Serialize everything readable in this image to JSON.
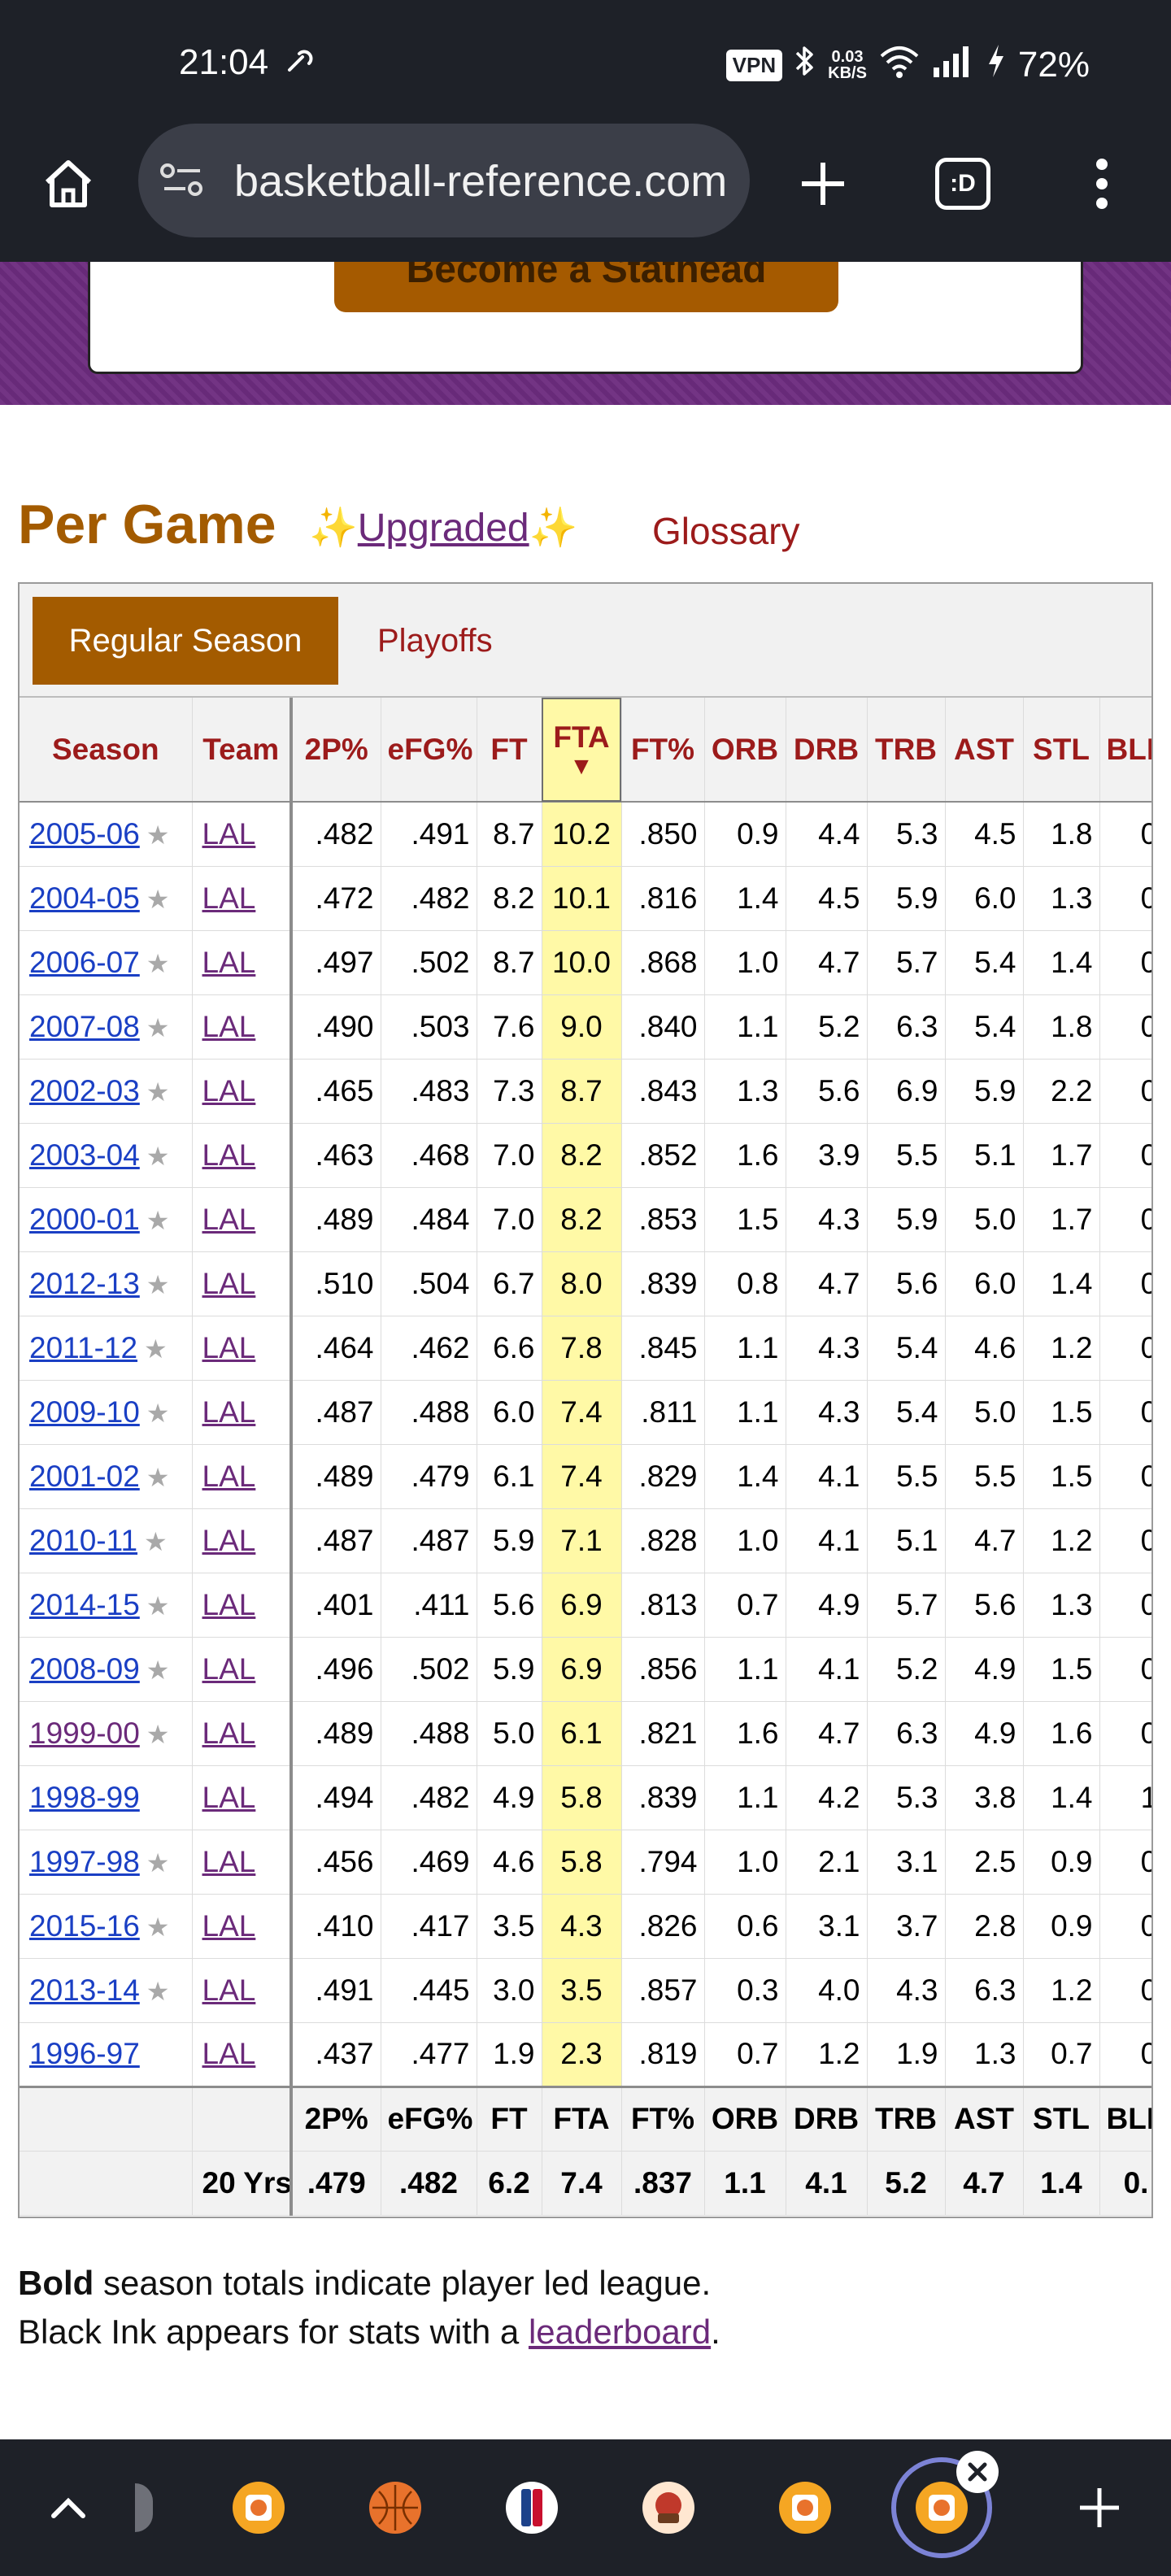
{
  "status_bar": {
    "time": "21:04",
    "nfc_icon": "nfc-icon",
    "vpn_label": "VPN",
    "net_speed_value": "0.03",
    "net_speed_unit": "KB/S",
    "battery": "72%"
  },
  "browser": {
    "url": "basketball-reference.com",
    "tab_count_label": ":D"
  },
  "banner": {
    "button_label": "Become a Stathead"
  },
  "section": {
    "title": "Per Game",
    "sparkle_left": "✨",
    "upgraded_label": "Upgraded",
    "sparkle_right": "✨",
    "glossary_label": "Glossary"
  },
  "filter_tabs": {
    "regular": "Regular Season",
    "playoffs": "Playoffs"
  },
  "columns": {
    "season": "Season",
    "team": "Team",
    "fg2_pct": "2P%",
    "efg_pct": "eFG%",
    "ft": "FT",
    "fta": "FTA",
    "fta_sort": "▼",
    "ft_pct": "FT%",
    "orb": "ORB",
    "drb": "DRB",
    "trb": "TRB",
    "ast": "AST",
    "stl": "STL",
    "blk": "BLK"
  },
  "rows": [
    {
      "season": "2005-06",
      "star": true,
      "team": "LAL",
      "fg2_pct": ".482",
      "efg_pct": ".491",
      "ft": "8.7",
      "fta": "10.2",
      "ft_pct": ".850",
      "orb": "0.9",
      "drb": "4.4",
      "trb": "5.3",
      "ast": "4.5",
      "stl": "1.8",
      "blk": "0."
    },
    {
      "season": "2004-05",
      "star": true,
      "team": "LAL",
      "fg2_pct": ".472",
      "efg_pct": ".482",
      "ft": "8.2",
      "fta": "10.1",
      "ft_pct": ".816",
      "orb": "1.4",
      "drb": "4.5",
      "trb": "5.9",
      "ast": "6.0",
      "stl": "1.3",
      "blk": "0."
    },
    {
      "season": "2006-07",
      "star": true,
      "team": "LAL",
      "fg2_pct": ".497",
      "efg_pct": ".502",
      "ft": "8.7",
      "fta": "10.0",
      "ft_pct": ".868",
      "orb": "1.0",
      "drb": "4.7",
      "trb": "5.7",
      "ast": "5.4",
      "stl": "1.4",
      "blk": "0."
    },
    {
      "season": "2007-08",
      "star": true,
      "team": "LAL",
      "fg2_pct": ".490",
      "efg_pct": ".503",
      "ft": "7.6",
      "fta": "9.0",
      "ft_pct": ".840",
      "orb": "1.1",
      "drb": "5.2",
      "trb": "6.3",
      "ast": "5.4",
      "stl": "1.8",
      "blk": "0."
    },
    {
      "season": "2002-03",
      "star": true,
      "team": "LAL",
      "fg2_pct": ".465",
      "efg_pct": ".483",
      "ft": "7.3",
      "fta": "8.7",
      "ft_pct": ".843",
      "orb": "1.3",
      "drb": "5.6",
      "trb": "6.9",
      "ast": "5.9",
      "stl": "2.2",
      "blk": "0."
    },
    {
      "season": "2003-04",
      "star": true,
      "team": "LAL",
      "fg2_pct": ".463",
      "efg_pct": ".468",
      "ft": "7.0",
      "fta": "8.2",
      "ft_pct": ".852",
      "orb": "1.6",
      "drb": "3.9",
      "trb": "5.5",
      "ast": "5.1",
      "stl": "1.7",
      "blk": "0."
    },
    {
      "season": "2000-01",
      "star": true,
      "team": "LAL",
      "fg2_pct": ".489",
      "efg_pct": ".484",
      "ft": "7.0",
      "fta": "8.2",
      "ft_pct": ".853",
      "orb": "1.5",
      "drb": "4.3",
      "trb": "5.9",
      "ast": "5.0",
      "stl": "1.7",
      "blk": "0."
    },
    {
      "season": "2012-13",
      "star": true,
      "team": "LAL",
      "fg2_pct": ".510",
      "efg_pct": ".504",
      "ft": "6.7",
      "fta": "8.0",
      "ft_pct": ".839",
      "orb": "0.8",
      "drb": "4.7",
      "trb": "5.6",
      "ast": "6.0",
      "stl": "1.4",
      "blk": "0."
    },
    {
      "season": "2011-12",
      "star": true,
      "team": "LAL",
      "fg2_pct": ".464",
      "efg_pct": ".462",
      "ft": "6.6",
      "fta": "7.8",
      "ft_pct": ".845",
      "orb": "1.1",
      "drb": "4.3",
      "trb": "5.4",
      "ast": "4.6",
      "stl": "1.2",
      "blk": "0."
    },
    {
      "season": "2009-10",
      "star": true,
      "team": "LAL",
      "fg2_pct": ".487",
      "efg_pct": ".488",
      "ft": "6.0",
      "fta": "7.4",
      "ft_pct": ".811",
      "orb": "1.1",
      "drb": "4.3",
      "trb": "5.4",
      "ast": "5.0",
      "stl": "1.5",
      "blk": "0."
    },
    {
      "season": "2001-02",
      "star": true,
      "team": "LAL",
      "fg2_pct": ".489",
      "efg_pct": ".479",
      "ft": "6.1",
      "fta": "7.4",
      "ft_pct": ".829",
      "orb": "1.4",
      "drb": "4.1",
      "trb": "5.5",
      "ast": "5.5",
      "stl": "1.5",
      "blk": "0."
    },
    {
      "season": "2010-11",
      "star": true,
      "team": "LAL",
      "fg2_pct": ".487",
      "efg_pct": ".487",
      "ft": "5.9",
      "fta": "7.1",
      "ft_pct": ".828",
      "orb": "1.0",
      "drb": "4.1",
      "trb": "5.1",
      "ast": "4.7",
      "stl": "1.2",
      "blk": "0."
    },
    {
      "season": "2014-15",
      "star": true,
      "team": "LAL",
      "fg2_pct": ".401",
      "efg_pct": ".411",
      "ft": "5.6",
      "fta": "6.9",
      "ft_pct": ".813",
      "orb": "0.7",
      "drb": "4.9",
      "trb": "5.7",
      "ast": "5.6",
      "stl": "1.3",
      "blk": "0."
    },
    {
      "season": "2008-09",
      "star": true,
      "team": "LAL",
      "fg2_pct": ".496",
      "efg_pct": ".502",
      "ft": "5.9",
      "fta": "6.9",
      "ft_pct": ".856",
      "orb": "1.1",
      "drb": "4.1",
      "trb": "5.2",
      "ast": "4.9",
      "stl": "1.5",
      "blk": "0."
    },
    {
      "season": "1999-00",
      "star": true,
      "visited": true,
      "team": "LAL",
      "fg2_pct": ".489",
      "efg_pct": ".488",
      "ft": "5.0",
      "fta": "6.1",
      "ft_pct": ".821",
      "orb": "1.6",
      "drb": "4.7",
      "trb": "6.3",
      "ast": "4.9",
      "stl": "1.6",
      "blk": "0."
    },
    {
      "season": "1998-99",
      "star": false,
      "team": "LAL",
      "fg2_pct": ".494",
      "efg_pct": ".482",
      "ft": "4.9",
      "fta": "5.8",
      "ft_pct": ".839",
      "orb": "1.1",
      "drb": "4.2",
      "trb": "5.3",
      "ast": "3.8",
      "stl": "1.4",
      "blk": "1."
    },
    {
      "season": "1997-98",
      "star": true,
      "team": "LAL",
      "fg2_pct": ".456",
      "efg_pct": ".469",
      "ft": "4.6",
      "fta": "5.8",
      "ft_pct": ".794",
      "orb": "1.0",
      "drb": "2.1",
      "trb": "3.1",
      "ast": "2.5",
      "stl": "0.9",
      "blk": "0."
    },
    {
      "season": "2015-16",
      "star": true,
      "team": "LAL",
      "fg2_pct": ".410",
      "efg_pct": ".417",
      "ft": "3.5",
      "fta": "4.3",
      "ft_pct": ".826",
      "orb": "0.6",
      "drb": "3.1",
      "trb": "3.7",
      "ast": "2.8",
      "stl": "0.9",
      "blk": "0."
    },
    {
      "season": "2013-14",
      "star": true,
      "team": "LAL",
      "fg2_pct": ".491",
      "efg_pct": ".445",
      "ft": "3.0",
      "fta": "3.5",
      "ft_pct": ".857",
      "orb": "0.3",
      "drb": "4.0",
      "trb": "4.3",
      "ast": "6.3",
      "stl": "1.2",
      "blk": "0."
    },
    {
      "season": "1996-97",
      "star": false,
      "team": "LAL",
      "fg2_pct": ".437",
      "efg_pct": ".477",
      "ft": "1.9",
      "fta": "2.3",
      "ft_pct": ".819",
      "orb": "0.7",
      "drb": "1.2",
      "trb": "1.9",
      "ast": "1.3",
      "stl": "0.7",
      "blk": "0."
    }
  ],
  "footer_head": {
    "fg2_pct": "2P%",
    "efg_pct": "eFG%",
    "ft": "FT",
    "fta": "FTA",
    "ft_pct": "FT%",
    "orb": "ORB",
    "drb": "DRB",
    "trb": "TRB",
    "ast": "AST",
    "stl": "STL",
    "blk": "BLK"
  },
  "career": {
    "label": "20 Yrs",
    "fg2_pct": ".479",
    "efg_pct": ".482",
    "ft": "6.2",
    "fta": "7.4",
    "ft_pct": ".837",
    "orb": "1.1",
    "drb": "4.1",
    "trb": "5.2",
    "ast": "4.7",
    "stl": "1.4",
    "blk": "0."
  },
  "notes": {
    "bold_word": "Bold",
    "line1_rest": " season totals indicate player led league.",
    "line2_prefix": "Black Ink appears for stats with a ",
    "leaderboard_link": "leaderboard",
    "line2_suffix": "."
  },
  "tab_strip": {
    "items": [
      "sports-reference-favicon",
      "basketball-reference-favicon",
      "basketball-favicon",
      "nba-favicon",
      "cafe-favicon",
      "basketball-reference-favicon",
      "basketball-reference-favicon-active"
    ]
  },
  "colors": {
    "accent_brown": "#a35b00",
    "link_blue": "#1a3fc4",
    "visited_purple": "#6b2a7a",
    "header_red": "#9c1b1b",
    "sort_highlight": "#fff9a6",
    "banner_purple": "#6d2c7f"
  }
}
